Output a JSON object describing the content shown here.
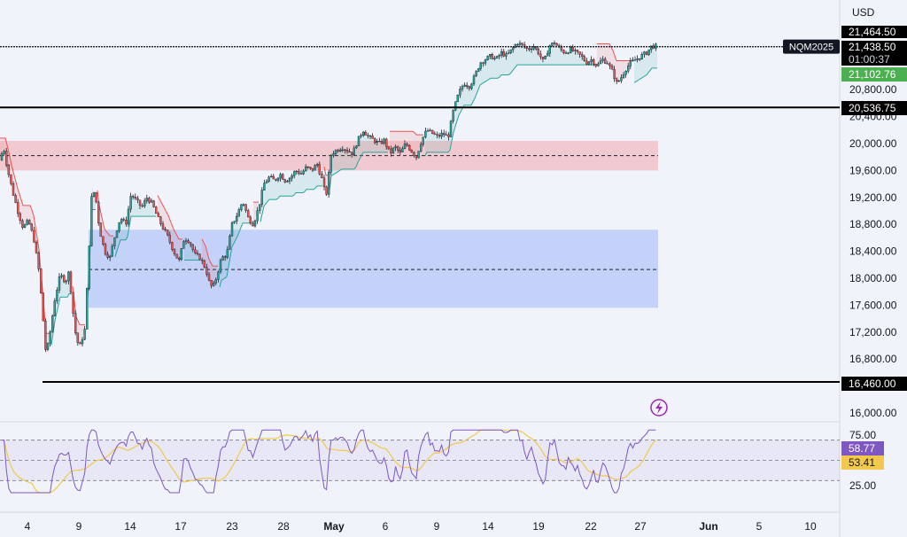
{
  "currency": "USD",
  "chart_data": {
    "type": "candlestick",
    "symbol": "NQM2025",
    "price_axis": {
      "ticks": [
        "20,800.00",
        "20,400.00",
        "20,000.00",
        "19,600.00",
        "19,200.00",
        "18,800.00",
        "18,400.00",
        "18,000.00",
        "17,600.00",
        "17,200.00",
        "16,800.00",
        "16,000.00"
      ],
      "ylim": [
        15860,
        21650
      ]
    },
    "time_axis": {
      "ticks": [
        "4",
        "9",
        "14",
        "17",
        "23",
        "28",
        "May",
        "6",
        "9",
        "14",
        "19",
        "22",
        "27",
        "Jun",
        "5",
        "10"
      ]
    },
    "price_labels": [
      {
        "id": "high",
        "text": "21,464.50",
        "style": "dark"
      },
      {
        "id": "last",
        "text": "21,438.50",
        "style": "dark"
      },
      {
        "id": "countdown",
        "text": "01:00:37",
        "style": "dark"
      },
      {
        "id": "stop",
        "text": "21,102.76",
        "style": "green"
      },
      {
        "id": "level_mid",
        "text": "20,536.75",
        "style": "dark"
      },
      {
        "id": "level_low",
        "text": "16,460.00",
        "style": "dark"
      }
    ],
    "horizontal_levels": [
      21438.5,
      20536.75,
      16460
    ],
    "zones": [
      {
        "name": "supply",
        "top": 20040,
        "bottom": 19600,
        "mid": 19820,
        "color": "#f28b94"
      },
      {
        "name": "demand",
        "top": 18720,
        "bottom": 17560,
        "mid": 18130,
        "color": "#8fa8f7"
      }
    ],
    "close_path": [
      [
        0,
        19750
      ],
      [
        4,
        19950
      ],
      [
        8,
        19650
      ],
      [
        14,
        19300
      ],
      [
        20,
        19000
      ],
      [
        26,
        18750
      ],
      [
        32,
        18850
      ],
      [
        38,
        18600
      ],
      [
        44,
        18100
      ],
      [
        48,
        17500
      ],
      [
        52,
        16850
      ],
      [
        56,
        17150
      ],
      [
        62,
        17700
      ],
      [
        68,
        18050
      ],
      [
        74,
        17950
      ],
      [
        78,
        18100
      ],
      [
        82,
        17550
      ],
      [
        86,
        17100
      ],
      [
        90,
        16980
      ],
      [
        96,
        17250
      ],
      [
        100,
        18300
      ],
      [
        104,
        19350
      ],
      [
        108,
        19200
      ],
      [
        112,
        18750
      ],
      [
        118,
        18400
      ],
      [
        124,
        18300
      ],
      [
        130,
        18650
      ],
      [
        136,
        18900
      ],
      [
        142,
        18800
      ],
      [
        148,
        19250
      ],
      [
        154,
        19150
      ],
      [
        160,
        19050
      ],
      [
        166,
        19200
      ],
      [
        172,
        19100
      ],
      [
        178,
        18900
      ],
      [
        184,
        18750
      ],
      [
        190,
        18600
      ],
      [
        196,
        18400
      ],
      [
        202,
        18250
      ],
      [
        208,
        18600
      ],
      [
        214,
        18550
      ],
      [
        220,
        18350
      ],
      [
        226,
        18300
      ],
      [
        232,
        18150
      ],
      [
        236,
        17950
      ],
      [
        240,
        17850
      ],
      [
        244,
        18000
      ],
      [
        250,
        18300
      ],
      [
        256,
        18350
      ],
      [
        262,
        18800
      ],
      [
        268,
        18950
      ],
      [
        274,
        19150
      ],
      [
        280,
        18900
      ],
      [
        286,
        18800
      ],
      [
        292,
        19050
      ],
      [
        298,
        19400
      ],
      [
        304,
        19500
      ],
      [
        310,
        19450
      ],
      [
        316,
        19550
      ],
      [
        322,
        19450
      ],
      [
        328,
        19500
      ],
      [
        334,
        19600
      ],
      [
        340,
        19550
      ],
      [
        346,
        19650
      ],
      [
        352,
        19600
      ],
      [
        358,
        19700
      ],
      [
        364,
        19450
      ],
      [
        368,
        19200
      ],
      [
        374,
        19850
      ],
      [
        380,
        19900
      ],
      [
        386,
        19950
      ],
      [
        392,
        19900
      ],
      [
        398,
        19850
      ],
      [
        404,
        20050
      ],
      [
        410,
        20200
      ],
      [
        416,
        20100
      ],
      [
        422,
        20050
      ],
      [
        428,
        20000
      ],
      [
        434,
        20050
      ],
      [
        440,
        19850
      ],
      [
        446,
        19950
      ],
      [
        452,
        19850
      ],
      [
        458,
        20000
      ],
      [
        464,
        19900
      ],
      [
        470,
        19800
      ],
      [
        476,
        20050
      ],
      [
        482,
        20200
      ],
      [
        488,
        20150
      ],
      [
        494,
        20100
      ],
      [
        500,
        20150
      ],
      [
        506,
        20100
      ],
      [
        512,
        20500
      ],
      [
        518,
        20750
      ],
      [
        524,
        20900
      ],
      [
        530,
        20850
      ],
      [
        536,
        21000
      ],
      [
        542,
        21200
      ],
      [
        548,
        21250
      ],
      [
        554,
        21300
      ],
      [
        560,
        21250
      ],
      [
        566,
        21350
      ],
      [
        572,
        21300
      ],
      [
        578,
        21400
      ],
      [
        584,
        21500
      ],
      [
        590,
        21450
      ],
      [
        596,
        21400
      ],
      [
        602,
        21450
      ],
      [
        608,
        21350
      ],
      [
        614,
        21200
      ],
      [
        620,
        21450
      ],
      [
        626,
        21500
      ],
      [
        632,
        21400
      ],
      [
        638,
        21350
      ],
      [
        644,
        21400
      ],
      [
        650,
        21350
      ],
      [
        656,
        21300
      ],
      [
        662,
        21200
      ],
      [
        668,
        21250
      ],
      [
        674,
        21150
      ],
      [
        680,
        21250
      ],
      [
        686,
        21200
      ],
      [
        692,
        21050
      ],
      [
        696,
        20900
      ],
      [
        700,
        20950
      ],
      [
        706,
        21100
      ],
      [
        712,
        21200
      ],
      [
        718,
        21250
      ],
      [
        724,
        21300
      ],
      [
        730,
        21350
      ],
      [
        736,
        21450
      ],
      [
        742,
        21440
      ]
    ],
    "rsi": {
      "ticks": [
        "75.00",
        "25.00"
      ],
      "value_labels": [
        {
          "text": "58.77",
          "color": "#7e57c2"
        },
        {
          "text": "53.41",
          "color": "#f2c94c"
        }
      ],
      "upper": 70,
      "lower": 30,
      "mid": 50
    }
  }
}
